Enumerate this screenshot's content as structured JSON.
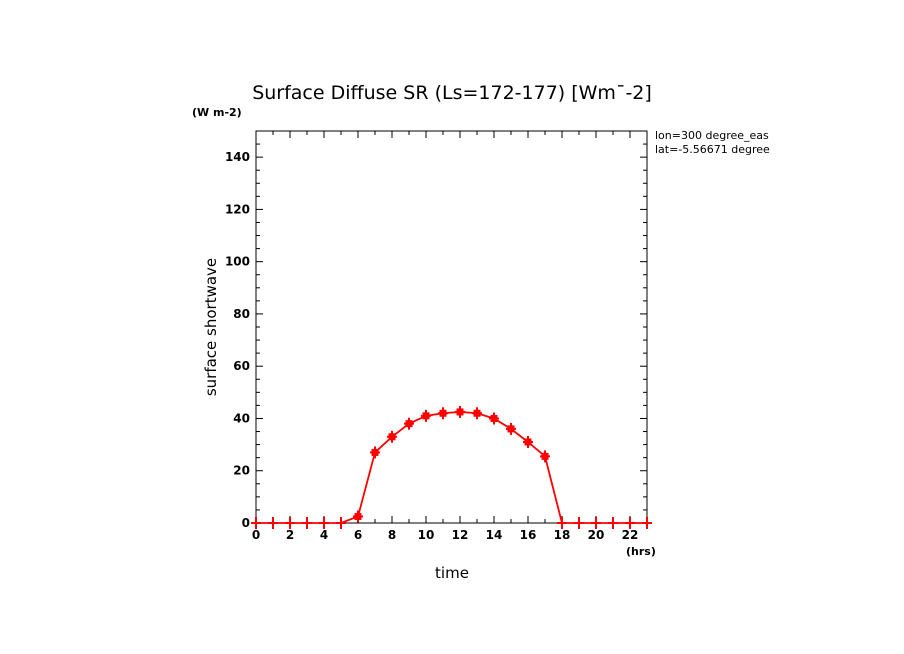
{
  "chart_data": {
    "type": "line",
    "title": "Surface Diffuse SR (Ls=172-177) [Wm^-2]",
    "title_parts": {
      "main": "Surface Diffuse SR (Ls=172-177) [Wm",
      "sup": "¯",
      "tail": "-2]"
    },
    "xlabel": "time",
    "ylabel": "surface shortwave",
    "y_unit": "(W m-2)",
    "x_unit": "(hrs)",
    "annotations": [
      "lon=300 degree_eas",
      "lat=-5.56671 degree"
    ],
    "xlim": [
      0,
      23
    ],
    "ylim": [
      0,
      150
    ],
    "x_ticks": [
      0,
      2,
      4,
      6,
      8,
      10,
      12,
      14,
      16,
      18,
      20,
      22
    ],
    "y_ticks": [
      0,
      20,
      40,
      60,
      80,
      100,
      120,
      140
    ],
    "series": [
      {
        "color": "#ff0000",
        "x": [
          0,
          1,
          2,
          3,
          4,
          5,
          6,
          7,
          8,
          9,
          10,
          11,
          12,
          13,
          14,
          15,
          16,
          17,
          18,
          19,
          20,
          21,
          22,
          23
        ],
        "values": [
          0,
          0,
          0,
          0,
          0,
          0,
          2.5,
          27,
          33,
          38,
          41,
          42,
          42.5,
          42,
          40,
          36,
          31,
          25.5,
          0,
          0,
          0,
          0,
          0,
          0
        ]
      }
    ]
  }
}
